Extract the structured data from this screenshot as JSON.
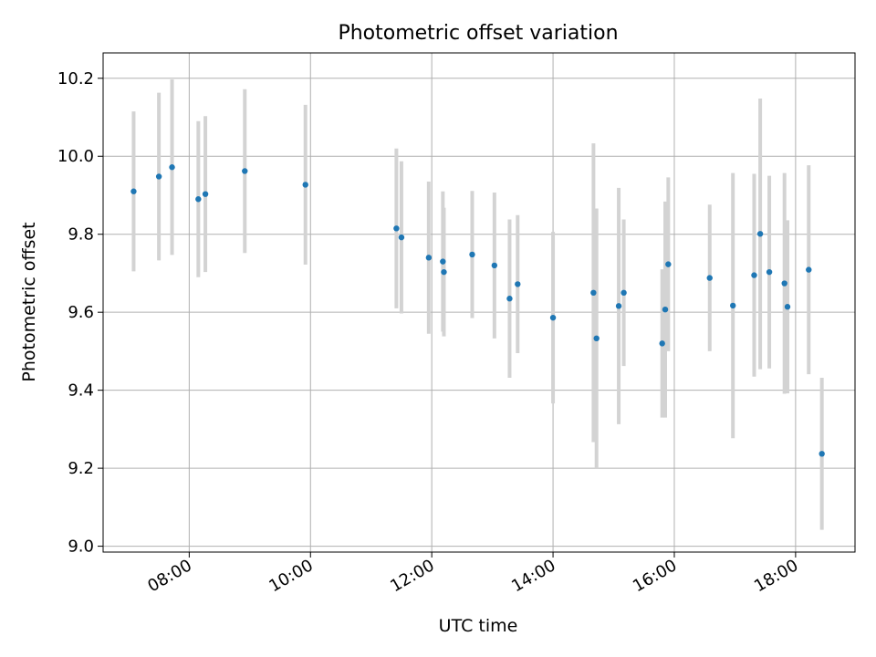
{
  "chart_data": {
    "type": "scatter",
    "title": "Photometric offset variation",
    "xlabel": "UTC time",
    "ylabel": "Photometric offset",
    "x_ticks": [
      "08:00",
      "10:00",
      "12:00",
      "14:00",
      "16:00",
      "18:00"
    ],
    "x_tick_hours": [
      8,
      10,
      12,
      14,
      16,
      18
    ],
    "xlim_hours": [
      6.58,
      18.98
    ],
    "ylim": [
      8.985,
      10.265
    ],
    "y_ticks": [
      9.0,
      9.2,
      9.4,
      9.6,
      9.8,
      10.0,
      10.2
    ],
    "y_tick_labels": [
      "9.0",
      "9.2",
      "9.4",
      "9.6",
      "9.8",
      "10.0",
      "10.2"
    ],
    "grid": true,
    "colors": {
      "marker": "#1f77b4",
      "errorbar": "#d3d3d3",
      "grid": "#b0b0b0"
    },
    "points": [
      {
        "t": "07:05",
        "y": 9.91,
        "err": 0.205
      },
      {
        "t": "07:30",
        "y": 9.948,
        "err": 0.215
      },
      {
        "t": "07:43",
        "y": 9.972,
        "err": 0.225
      },
      {
        "t": "08:09",
        "y": 9.89,
        "err": 0.2
      },
      {
        "t": "08:16",
        "y": 9.903,
        "err": 0.2
      },
      {
        "t": "08:55",
        "y": 9.962,
        "err": 0.21
      },
      {
        "t": "09:55",
        "y": 9.927,
        "err": 0.205
      },
      {
        "t": "11:25",
        "y": 9.815,
        "err": 0.205
      },
      {
        "t": "11:30",
        "y": 9.792,
        "err": 0.195
      },
      {
        "t": "11:57",
        "y": 9.74,
        "err": 0.195
      },
      {
        "t": "12:11",
        "y": 9.73,
        "err": 0.18
      },
      {
        "t": "12:12",
        "y": 9.703,
        "err": 0.165
      },
      {
        "t": "12:40",
        "y": 9.748,
        "err": 0.163
      },
      {
        "t": "13:02",
        "y": 9.72,
        "err": 0.187
      },
      {
        "t": "13:17",
        "y": 9.635,
        "err": 0.203
      },
      {
        "t": "13:25",
        "y": 9.672,
        "err": 0.177
      },
      {
        "t": "14:00",
        "y": 9.586,
        "err": 0.22
      },
      {
        "t": "14:40",
        "y": 9.65,
        "err": 0.383
      },
      {
        "t": "14:43",
        "y": 9.533,
        "err": 0.333
      },
      {
        "t": "15:05",
        "y": 9.616,
        "err": 0.303
      },
      {
        "t": "15:10",
        "y": 9.65,
        "err": 0.188
      },
      {
        "t": "15:48",
        "y": 9.52,
        "err": 0.19
      },
      {
        "t": "15:51",
        "y": 9.607,
        "err": 0.277
      },
      {
        "t": "15:54",
        "y": 9.723,
        "err": 0.223
      },
      {
        "t": "16:35",
        "y": 9.688,
        "err": 0.188
      },
      {
        "t": "16:58",
        "y": 9.617,
        "err": 0.34
      },
      {
        "t": "17:19",
        "y": 9.695,
        "err": 0.26
      },
      {
        "t": "17:25",
        "y": 9.801,
        "err": 0.347
      },
      {
        "t": "17:34",
        "y": 9.703,
        "err": 0.247
      },
      {
        "t": "17:49",
        "y": 9.674,
        "err": 0.283
      },
      {
        "t": "17:52",
        "y": 9.614,
        "err": 0.222
      },
      {
        "t": "18:13",
        "y": 9.709,
        "err": 0.268
      },
      {
        "t": "18:26",
        "y": 9.237,
        "err": 0.195
      }
    ]
  }
}
